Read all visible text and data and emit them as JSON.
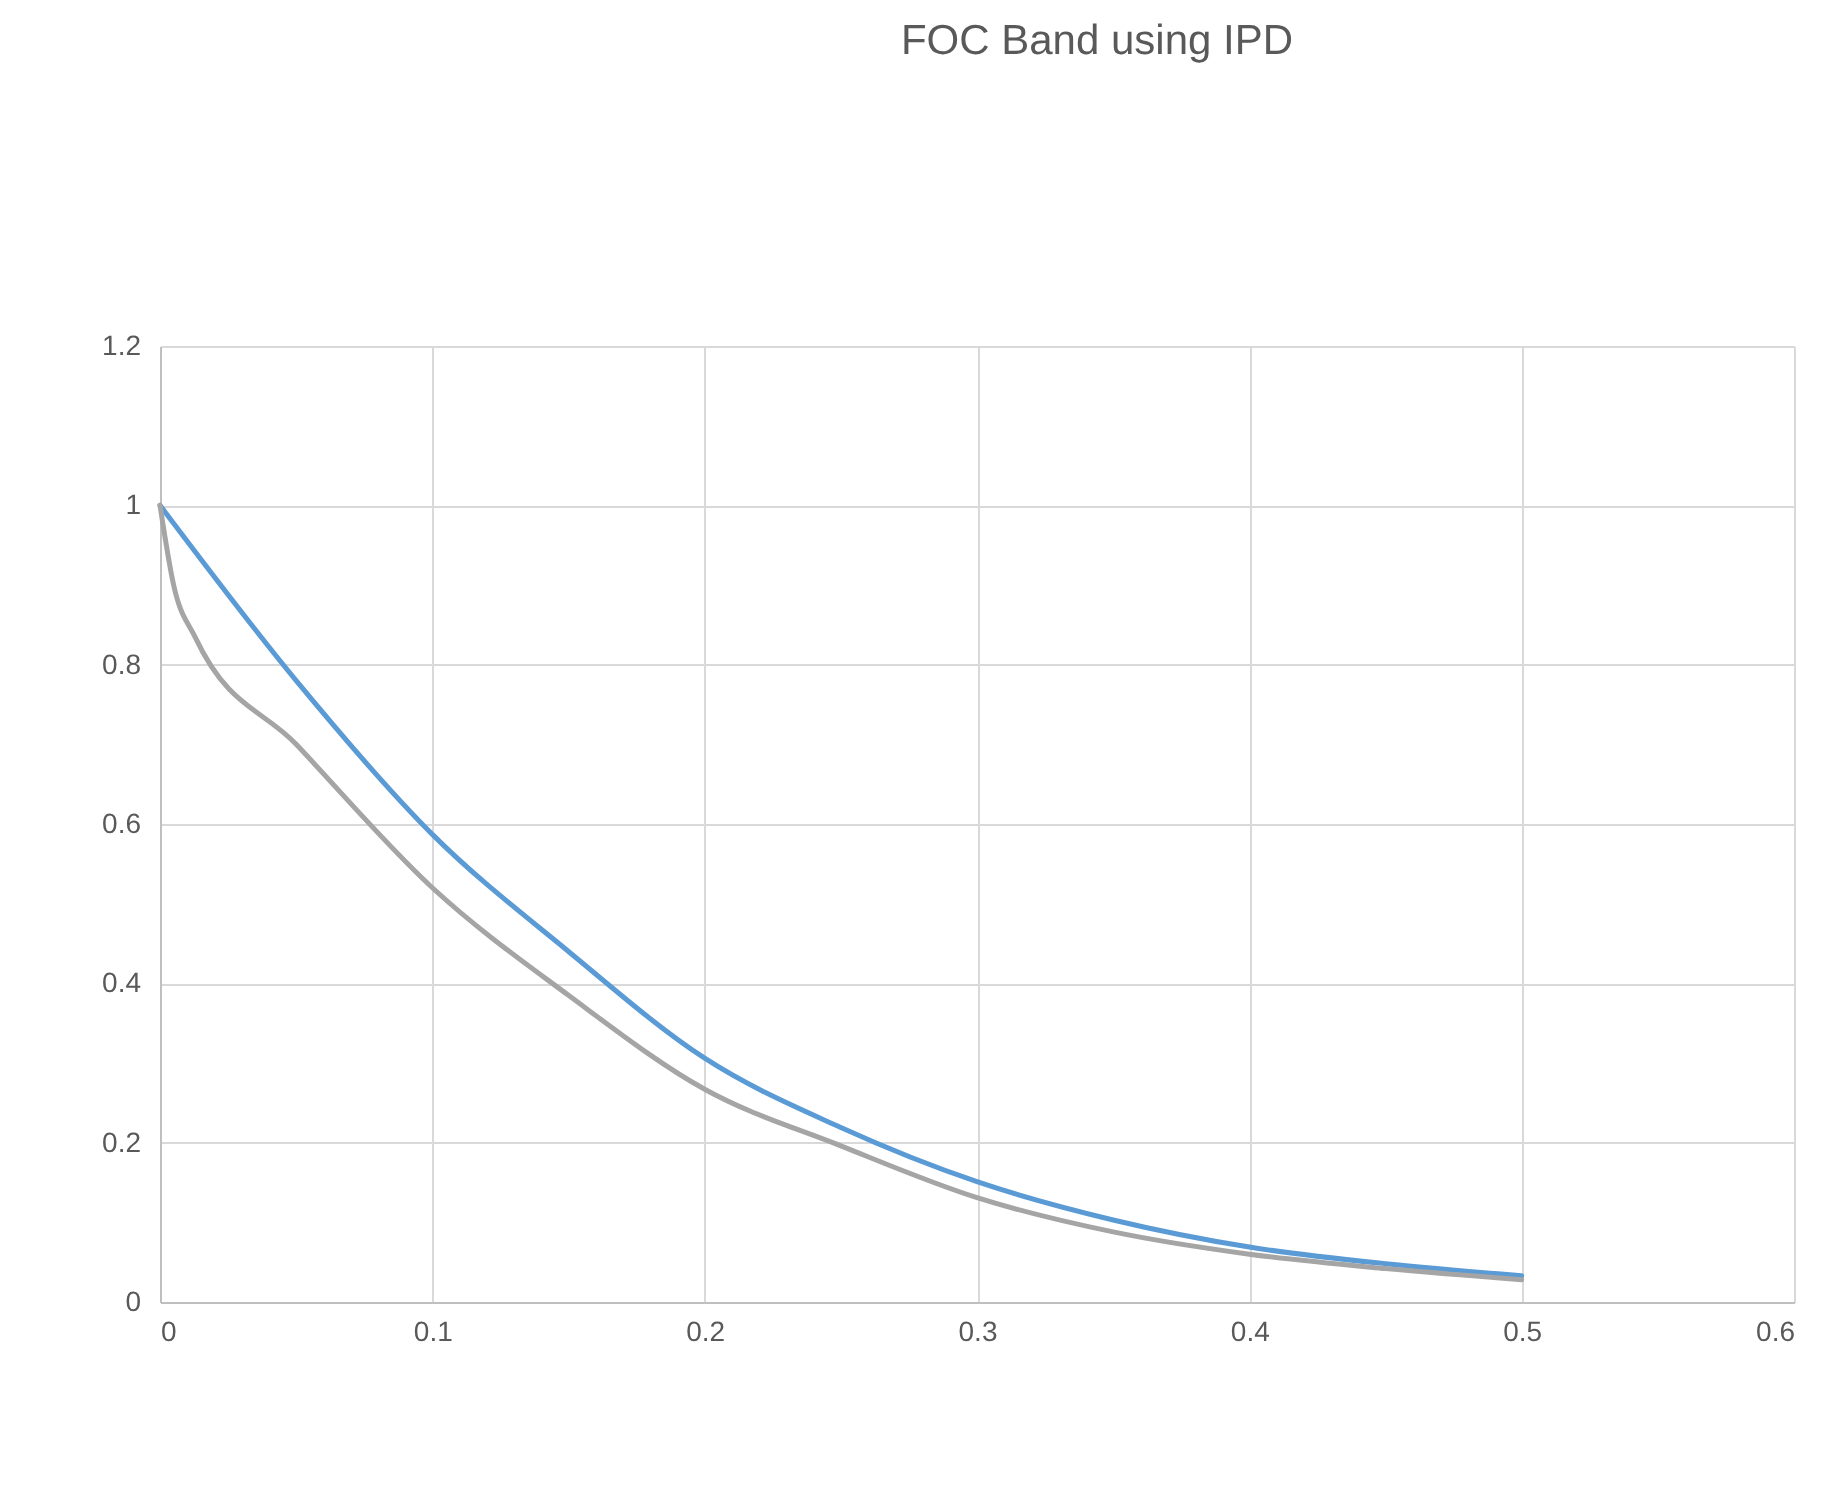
{
  "chart_data": {
    "type": "line",
    "title": "FOC Band using IPD",
    "series": [
      {
        "color": "#5b9bd5",
        "x": [
          0,
          0.05,
          0.1,
          0.15,
          0.2,
          0.25,
          0.3,
          0.35,
          0.4,
          0.45,
          0.5
        ],
        "values": [
          1,
          0.78,
          0.587,
          0.44,
          0.306,
          0.219,
          0.151,
          0.103,
          0.069,
          0.048,
          0.033
        ]
      },
      {
        "color": "#a5a5a5",
        "x": [
          0,
          0.005,
          0.013,
          0.05,
          0.1,
          0.15,
          0.2,
          0.25,
          0.3,
          0.35,
          0.4,
          0.45,
          0.5
        ],
        "values": [
          1,
          0.9,
          0.834,
          0.7,
          0.52,
          0.385,
          0.267,
          0.196,
          0.131,
          0.088,
          0.06,
          0.042,
          0.028
        ]
      }
    ],
    "xlim": [
      0,
      0.6
    ],
    "xticks": [
      0,
      0.1,
      0.2,
      0.3,
      0.4,
      0.5,
      0.6
    ],
    "ylim": [
      0,
      1.2
    ],
    "yticks": [
      0,
      0.2,
      0.4,
      0.6,
      0.8,
      1,
      1.2
    ],
    "grid": true,
    "marker": "none",
    "line_style": "solid"
  }
}
